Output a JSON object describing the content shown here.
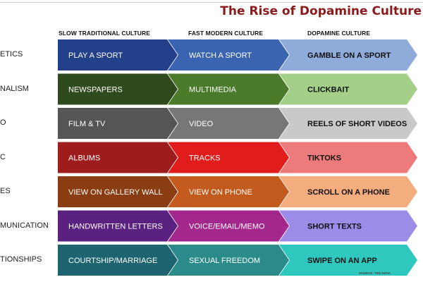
{
  "title": "The Rise of Dopamine Culture",
  "columns": [
    "SLOW TRADITIONAL CULTURE",
    "FAST MODERN CULTURE",
    "DOPAMINE CULTURE"
  ],
  "rows": [
    {
      "label": "ETICS",
      "cells": [
        "PLAY A SPORT",
        "WATCH A SPORT",
        "GAMBLE ON A SPORT"
      ],
      "colors": [
        "#23418a",
        "#3a64b0",
        "#8fabd9"
      ]
    },
    {
      "label": "NALISM",
      "cells": [
        "NEWSPAPERS",
        "MULTIMEDIA",
        "CLICKBAIT"
      ],
      "colors": [
        "#2f4a1c",
        "#4a7a2a",
        "#a3cf88"
      ]
    },
    {
      "label": "O",
      "cells": [
        "FILM &  TV",
        "VIDEO",
        "REELS OF SHORT VIDEOS"
      ],
      "colors": [
        "#555555",
        "#777777",
        "#c9c9c9"
      ]
    },
    {
      "label": "C",
      "cells": [
        "ALBUMS",
        "TRACKS",
        "TIKTOKS"
      ],
      "colors": [
        "#9e1c1c",
        "#e01c1c",
        "#ee7b7b"
      ]
    },
    {
      "label": "ES",
      "cells": [
        "VIEW ON GALLERY WALL",
        "VIEW ON PHONE",
        "SCROLL ON A PHONE"
      ],
      "colors": [
        "#8a3d12",
        "#c45b1e",
        "#f4ad7e"
      ]
    },
    {
      "label": "MUNICATION",
      "cells": [
        "HANDWRITTEN LETTERS",
        "VOICE/EMAIL/MEMO",
        "SHORT TEXTS"
      ],
      "colors": [
        "#5a2180",
        "#a3278d",
        "#9c8ce8"
      ]
    },
    {
      "label": "TIONSHIPS",
      "cells": [
        "COURTSHIP/MARRIAGE",
        "SEXUAL FREEDOM",
        "SWIPE ON AN APP"
      ],
      "colors": [
        "#1d6470",
        "#2b8b8b",
        "#2ec8bf"
      ]
    }
  ],
  "text_colors": [
    "#ffffff",
    "#ffffff",
    "#111111"
  ],
  "source": "SOURCE: TED GIOIA"
}
